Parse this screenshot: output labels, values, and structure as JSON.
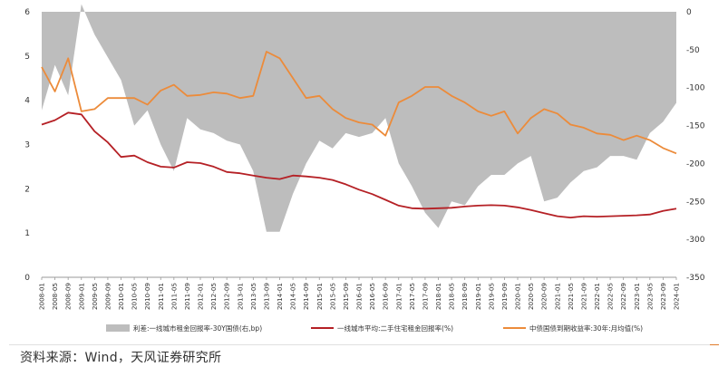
{
  "chart_data": {
    "type": "area",
    "left_axis": {
      "ylim": [
        0,
        6
      ],
      "ticks": [
        "0",
        "1",
        "2",
        "3",
        "4",
        "5",
        "6"
      ]
    },
    "right_axis": {
      "ylim": [
        -350,
        0
      ],
      "ticks": [
        "0",
        "-50",
        "-100",
        "-150",
        "-200",
        "-250",
        "-300",
        "-350"
      ]
    },
    "x": [
      "2008-01",
      "2008-05",
      "2008-09",
      "2009-01",
      "2009-05",
      "2009-09",
      "2010-01",
      "2010-05",
      "2010-09",
      "2011-01",
      "2011-05",
      "2011-09",
      "2012-01",
      "2012-05",
      "2012-09",
      "2013-01",
      "2013-05",
      "2013-09",
      "2014-01",
      "2014-05",
      "2014-09",
      "2015-01",
      "2015-05",
      "2015-09",
      "2016-01",
      "2016-05",
      "2016-09",
      "2017-01",
      "2017-05",
      "2017-09",
      "2018-01",
      "2018-05",
      "2018-09",
      "2019-01",
      "2019-05",
      "2019-09",
      "2020-01",
      "2020-05",
      "2020-09",
      "2021-01",
      "2021-05",
      "2021-09",
      "2022-01",
      "2022-05",
      "2022-09",
      "2023-01",
      "2023-05",
      "2023-09",
      "2024-01"
    ],
    "series": [
      {
        "name": "利差:一线城市租金回报率-30Y国债(右,bp)",
        "axis": "right",
        "color": "#bdbdbd",
        "values": [
          -130,
          -70,
          -110,
          10,
          -30,
          -60,
          -90,
          -150,
          -130,
          -175,
          -210,
          -140,
          -155,
          -160,
          -170,
          -175,
          -210,
          -290,
          -290,
          -240,
          -200,
          -170,
          -180,
          -160,
          -165,
          -160,
          -140,
          -200,
          -230,
          -265,
          -285,
          -250,
          -255,
          -230,
          -215,
          -215,
          -200,
          -190,
          -250,
          -245,
          -225,
          -210,
          -205,
          -190,
          -190,
          -195,
          -160,
          -145,
          -120
        ]
      },
      {
        "name": "一线城市平均:二手住宅租金回报率(%)",
        "axis": "left",
        "color": "#b52025",
        "values": [
          3.45,
          3.55,
          3.72,
          3.68,
          3.3,
          3.05,
          2.72,
          2.75,
          2.6,
          2.5,
          2.48,
          2.6,
          2.58,
          2.5,
          2.38,
          2.35,
          2.3,
          2.25,
          2.22,
          2.3,
          2.28,
          2.25,
          2.2,
          2.1,
          1.98,
          1.88,
          1.75,
          1.62,
          1.56,
          1.55,
          1.56,
          1.57,
          1.6,
          1.62,
          1.63,
          1.62,
          1.58,
          1.52,
          1.45,
          1.38,
          1.35,
          1.38,
          1.37,
          1.38,
          1.39,
          1.4,
          1.42,
          1.5,
          1.55
        ]
      },
      {
        "name": "中债国债到期收益率:30年:月均值(%)",
        "axis": "left",
        "color": "#ec8b3a",
        "values": [
          4.75,
          4.2,
          4.95,
          3.75,
          3.8,
          4.05,
          4.05,
          4.05,
          3.9,
          4.22,
          4.35,
          4.1,
          4.12,
          4.18,
          4.15,
          4.05,
          4.1,
          5.1,
          4.95,
          4.5,
          4.05,
          4.1,
          3.8,
          3.6,
          3.5,
          3.45,
          3.2,
          3.95,
          4.1,
          4.3,
          4.3,
          4.1,
          3.95,
          3.75,
          3.65,
          3.75,
          3.25,
          3.6,
          3.8,
          3.7,
          3.45,
          3.38,
          3.25,
          3.22,
          3.1,
          3.2,
          3.1,
          2.92,
          2.8
        ]
      }
    ],
    "legend_position": "bottom",
    "grid": false
  },
  "legend": [
    "利差:一线城市租金回报率-30Y国债(右,bp)",
    "一线城市平均:二手住宅租金回报率(%)",
    "中债国债到期收益率:30年:月均值(%)"
  ],
  "source": "资料来源：Wind，天风证券研究所"
}
